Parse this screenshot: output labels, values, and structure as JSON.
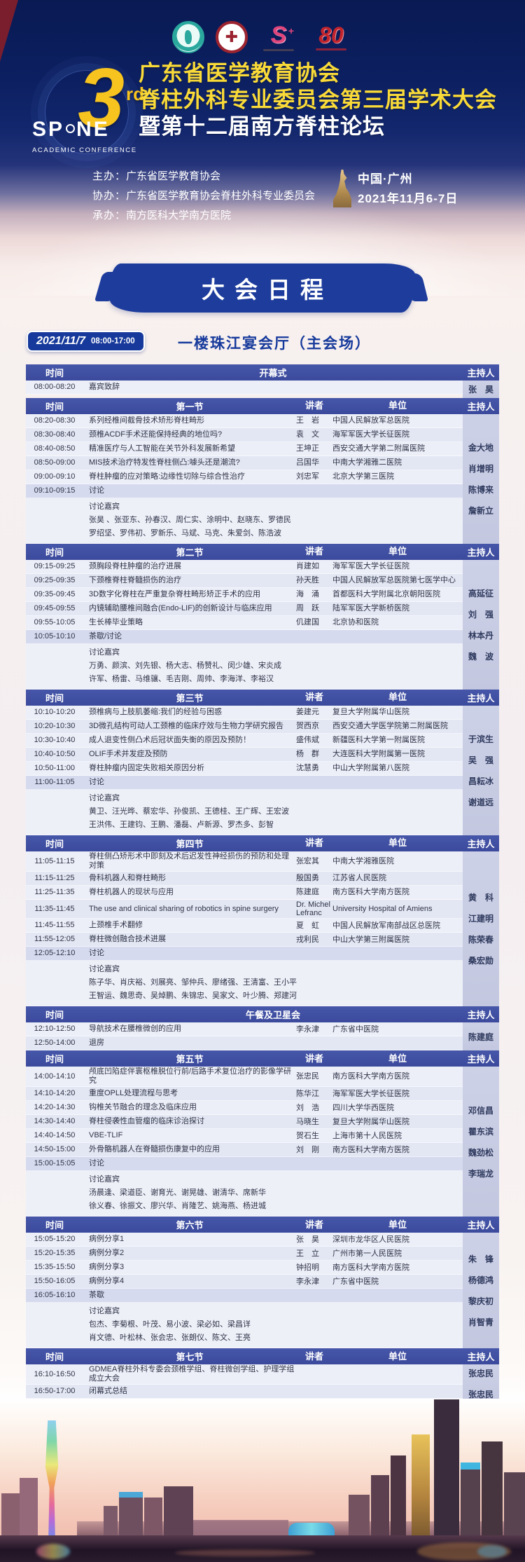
{
  "colors": {
    "hero_navy": "#0c1f60",
    "title_yellow": "#f9da38",
    "banner_blue": "#1d3c9c",
    "pill_blue": "#16399b",
    "table_header_blue": "#4151a3",
    "host_column": "#c7cce4",
    "break_row": "#d6daee"
  },
  "header": {
    "anniversary_text": "80",
    "logo": {
      "number": "3",
      "ordinal": "rd",
      "brand_left": "SP",
      "brand_right": "NE",
      "tagline": "ACADEMIC CONFERENCE"
    },
    "title_line1": "广东省医学教育协会",
    "title_line2": "脊柱外科专业委员会第三届学术大会",
    "title_line3": "暨第十二届南方脊柱论坛",
    "organizers": [
      {
        "label": "主办：",
        "value": "广东省医学教育协会"
      },
      {
        "label": "协办：",
        "value": "广东省医学教育协会脊柱外科专业委员会"
      },
      {
        "label": "承办：",
        "value": "南方医科大学南方医院"
      }
    ],
    "location": "中国·广州",
    "dates": "2021年11月6-7日"
  },
  "banner": {
    "title": "大会日程"
  },
  "session": {
    "date": "2021/11/7",
    "time": "08:00-17:00",
    "venue": "一楼珠江宴会厅（主会场）"
  },
  "table": {
    "columns": {
      "time": "时间",
      "speaker": "讲者",
      "org": "单位",
      "host": "主持人"
    },
    "sections": [
      {
        "title": "开幕式",
        "has_speaker_columns": false,
        "hosts": [
          "张　昊"
        ],
        "rows": [
          {
            "time": "08:00-08:20",
            "title": "嘉宾致辞",
            "speaker": "",
            "org": "",
            "type": "normal"
          }
        ]
      },
      {
        "title": "第一节",
        "has_speaker_columns": true,
        "hosts": [
          "金大地",
          "肖增明",
          "陈博来",
          "詹新立"
        ],
        "rows": [
          {
            "time": "08:20-08:30",
            "title": "系列经椎间截骨技术矫形脊柱畸形",
            "speaker": "王　岩",
            "org": "中国人民解放军总医院",
            "type": "normal"
          },
          {
            "time": "08:30-08:40",
            "title": "颈椎ACDF手术还能保持经典的地位吗?",
            "speaker": "袁　文",
            "org": "海军军医大学长征医院",
            "type": "normal"
          },
          {
            "time": "08:40-08:50",
            "title": "精准医疗与人工智能在关节外科发展新希望",
            "speaker": "王坤正",
            "org": "西安交通大学第二附属医院",
            "type": "normal"
          },
          {
            "time": "08:50-09:00",
            "title": "MIS技术治疗特发性脊柱侧凸:噱头还是潮流?",
            "speaker": "吕国华",
            "org": "中南大学湘雅二医院",
            "type": "normal"
          },
          {
            "time": "09:00-09:10",
            "title": "脊柱肿瘤的应对策略:边缘性切除与综合性治疗",
            "speaker": "刘忠军",
            "org": "北京大学第三医院",
            "type": "normal"
          },
          {
            "time": "09:10-09:15",
            "title": "讨论",
            "speaker": "",
            "org": "",
            "type": "break"
          }
        ],
        "guests": {
          "label": "讨论嘉宾",
          "lines": [
            "张昊 、张亚东、孙春汉、周仁实、涂明中、赵晓东、罗德民",
            "罗绍坚、罗伟初、罗新乐、马斌、马克、朱爱剑、陈浩波"
          ]
        }
      },
      {
        "title": "第二节",
        "has_speaker_columns": true,
        "hosts": [
          "高延征",
          "刘　强",
          "林本丹",
          "魏　波"
        ],
        "rows": [
          {
            "time": "09:15-09:25",
            "title": "颈胸段脊柱肿瘤的治疗进展",
            "speaker": "肖建如",
            "org": "海军军医大学长征医院",
            "type": "normal"
          },
          {
            "time": "09:25-09:35",
            "title": "下颈椎脊柱脊髓损伤的治疗",
            "speaker": "孙天胜",
            "org": "中国人民解放军总医院第七医学中心",
            "type": "normal"
          },
          {
            "time": "09:35-09:45",
            "title": "3D数字化脊柱在严重复杂脊柱畸形矫正手术的应用",
            "speaker": "海　涌",
            "org": "首都医科大学附属北京朝阳医院",
            "type": "normal"
          },
          {
            "time": "09:45-09:55",
            "title": "内镜辅助腰椎间融合(Endo-LIF)的创新设计与临床应用",
            "speaker": "周　跃",
            "org": "陆军军医大学新桥医院",
            "type": "normal"
          },
          {
            "time": "09:55-10:05",
            "title": "生长棒毕业策略",
            "speaker": "仉建国",
            "org": "北京协和医院",
            "type": "normal"
          },
          {
            "time": "10:05-10:10",
            "title": "茶歇/讨论",
            "speaker": "",
            "org": "",
            "type": "break"
          }
        ],
        "guests": {
          "label": "讨论嘉宾",
          "lines": [
            "万勇、颜滨、刘先银、杨大志、杨赞礼、闵少雄、宋炎成",
            "许军、杨雷、马维骧、毛吉刚、周帅、李海洋、李裕汉"
          ]
        }
      },
      {
        "title": "第三节",
        "has_speaker_columns": true,
        "hosts": [
          "于滨生",
          "吴　强",
          "昌耘冰",
          "谢道远"
        ],
        "rows": [
          {
            "time": "10:10-10:20",
            "title": "颈椎病与上肢肌萎缩:我们的经验与困惑",
            "speaker": "姜建元",
            "org": "复旦大学附属华山医院",
            "type": "normal"
          },
          {
            "time": "10:20-10:30",
            "title": "3D微孔结构可动人工颈椎的临床疗效与生物力学研究报告",
            "speaker": "贺西京",
            "org": "西安交通大学医学院第二附属医院",
            "type": "normal"
          },
          {
            "time": "10:30-10:40",
            "title": "成人退变性侧凸术后冠状面失衡的原因及预防！",
            "speaker": "盛伟斌",
            "org": "新疆医科大学第一附属医院",
            "type": "normal"
          },
          {
            "time": "10:40-10:50",
            "title": "OLIF手术并发症及预防",
            "speaker": "杨　群",
            "org": "大连医科大学附属第一医院",
            "type": "normal"
          },
          {
            "time": "10:50-11:00",
            "title": "脊柱肿瘤内固定失败相关原因分析",
            "speaker": "沈慧勇",
            "org": "中山大学附属第八医院",
            "type": "normal"
          },
          {
            "time": "11:00-11:05",
            "title": "讨论",
            "speaker": "",
            "org": "",
            "type": "break"
          }
        ],
        "guests": {
          "label": "讨论嘉宾",
          "lines": [
            "黄卫、汪光晔、蔡宏华、孙俊凯、王德桂、王广辉、王宏波",
            "王洪伟、王建钧、王鹏、潘磊、卢新源、罗杰多、彭智"
          ]
        }
      },
      {
        "title": "第四节",
        "has_speaker_columns": true,
        "hosts": [
          "黄　科",
          "江建明",
          "陈荣春",
          "桑宏勋"
        ],
        "rows": [
          {
            "time": "11:05-11:15",
            "title": "脊柱侧凸矫形术中即刻及术后迟发性神经损伤的预防和处理对策",
            "speaker": "张宏其",
            "org": "中南大学湘雅医院",
            "type": "normal"
          },
          {
            "time": "11:15-11:25",
            "title": "骨科机器人和脊柱畸形",
            "speaker": "殷国勇",
            "org": "江苏省人民医院",
            "type": "normal"
          },
          {
            "time": "11:25-11:35",
            "title": "脊柱机器人的现状与应用",
            "speaker": "陈建庭",
            "org": "南方医科大学南方医院",
            "type": "normal"
          },
          {
            "time": "11:35-11:45",
            "title": "The use and clinical sharing of robotics in spine surgery",
            "speaker": "Dr. Michel Lefranc",
            "org": "University Hospital of Amiens",
            "type": "normal"
          },
          {
            "time": "11:45-11:55",
            "title": "上颈椎手术翻修",
            "speaker": "夏　虹",
            "org": "中国人民解放军南部战区总医院",
            "type": "normal"
          },
          {
            "time": "11:55-12:05",
            "title": "脊柱微创融合技术进展",
            "speaker": "戎利民",
            "org": "中山大学第三附属医院",
            "type": "normal"
          },
          {
            "time": "12:05-12:10",
            "title": "讨论",
            "speaker": "",
            "org": "",
            "type": "break"
          }
        ],
        "guests": {
          "label": "讨论嘉宾",
          "lines": [
            "陈子华、肖庆裕、刘展亮、邹仲兵、廖绪强、王清富、王小平",
            "王智运、魏思奇、吴焯鹏、朱锦忠、吴家文、叶少腾、郑建河"
          ]
        }
      },
      {
        "title": "午餐及卫星会",
        "has_speaker_columns": false,
        "hosts": [
          "陈建庭"
        ],
        "rows": [
          {
            "time": "12:10-12:50",
            "title": "导航技术在腰椎微创的应用",
            "speaker": "李永津",
            "org": "广东省中医院",
            "type": "normal"
          },
          {
            "time": "12:50-14:00",
            "title": "退房",
            "speaker": "",
            "org": "",
            "type": "normal"
          }
        ]
      },
      {
        "title": "第五节",
        "has_speaker_columns": true,
        "hosts": [
          "邓信昌",
          "瞿东滨",
          "魏劲松",
          "李瑞龙"
        ],
        "rows": [
          {
            "time": "14:00-14:10",
            "title": "颅底凹陷症伴寰枢椎脱位行前/后路手术复位治疗的影像学研究",
            "speaker": "张忠民",
            "org": "南方医科大学南方医院",
            "type": "normal"
          },
          {
            "time": "14:10-14:20",
            "title": "重度OPLL处理流程与思考",
            "speaker": "陈华江",
            "org": "海军军医大学长征医院",
            "type": "normal"
          },
          {
            "time": "14:20-14:30",
            "title": "钩椎关节融合的理念及临床应用",
            "speaker": "刘　浩",
            "org": "四川大学华西医院",
            "type": "normal"
          },
          {
            "time": "14:30-14:40",
            "title": "脊柱侵袭性血管瘤的临床诊治探讨",
            "speaker": "马晓生",
            "org": "复旦大学附属华山医院",
            "type": "normal"
          },
          {
            "time": "14:40-14:50",
            "title": "VBE-TLIF",
            "speaker": "贺石生",
            "org": "上海市第十人民医院",
            "type": "normal"
          },
          {
            "time": "14:50-15:00",
            "title": "外骨骼机器人在脊髓损伤康复中的应用",
            "speaker": "刘　刚",
            "org": "南方医科大学南方医院",
            "type": "normal"
          },
          {
            "time": "15:00-15:05",
            "title": "讨论",
            "speaker": "",
            "org": "",
            "type": "break"
          }
        ],
        "guests": {
          "label": "讨论嘉宾",
          "lines": [
            "汤晨逢、梁道臣、谢育光、谢晃雄、谢清华、席新华",
            "徐义春、徐振文、廖兴华、肖隆艺、姚海燕、杨进城"
          ]
        }
      },
      {
        "title": "第六节",
        "has_speaker_columns": true,
        "hosts": [
          "朱　锋",
          "杨德鸿",
          "黎庆初",
          "肖智青"
        ],
        "rows": [
          {
            "time": "15:05-15:20",
            "title": "病例分享1",
            "speaker": "张　昊",
            "org": "深圳市龙华区人民医院",
            "type": "normal"
          },
          {
            "time": "15:20-15:35",
            "title": "病例分享2",
            "speaker": "王　立",
            "org": "广州市第一人民医院",
            "type": "normal"
          },
          {
            "time": "15:35-15:50",
            "title": "病例分享3",
            "speaker": "钟招明",
            "org": "南方医科大学南方医院",
            "type": "normal"
          },
          {
            "time": "15:50-16:05",
            "title": "病例分享4",
            "speaker": "李永津",
            "org": "广东省中医院",
            "type": "normal"
          },
          {
            "time": "16:05-16:10",
            "title": "茶歇",
            "speaker": "",
            "org": "",
            "type": "break"
          }
        ],
        "guests": {
          "label": "讨论嘉宾",
          "lines": [
            "包杰、李菊根、叶茂、易小波、梁必如、梁昌详",
            "肖文德、叶松林、张会忠、张朗仪、陈文、王亮"
          ]
        }
      },
      {
        "title": "第七节",
        "has_speaker_columns": true,
        "hosts": [
          "张忠民",
          "张忠民"
        ],
        "rows": [
          {
            "time": "16:10-16:50",
            "title": "GDMEA脊柱外科专委会颈椎学组、脊柱微创学组、护理学组成立大会",
            "speaker": "",
            "org": "",
            "type": "normal"
          },
          {
            "time": "16:50-17:00",
            "title": "闭幕式总结",
            "speaker": "",
            "org": "",
            "type": "normal"
          }
        ]
      }
    ]
  }
}
